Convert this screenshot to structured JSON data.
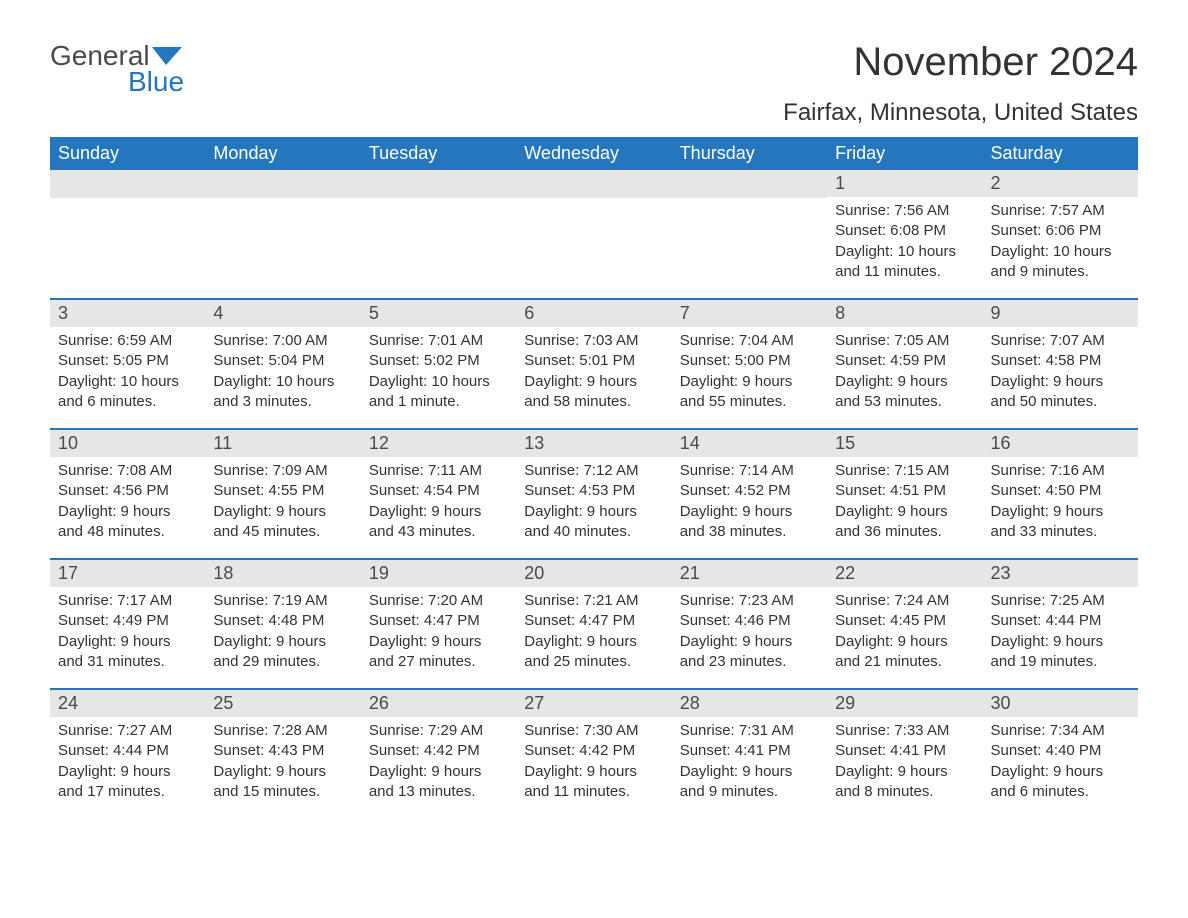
{
  "logo": {
    "word1": "General",
    "word2": "Blue",
    "flag_color": "#2476bd",
    "text_gray": "#4a4a4a",
    "text_blue": "#2476bd"
  },
  "title": "November 2024",
  "location": "Fairfax, Minnesota, United States",
  "colors": {
    "header_bg": "#2476bd",
    "header_text": "#ffffff",
    "daynum_bg": "#e6e6e6",
    "daynum_text": "#4a4a4a",
    "body_text": "#333333",
    "row_border": "#2476bd",
    "page_bg": "#ffffff"
  },
  "weekdays": [
    "Sunday",
    "Monday",
    "Tuesday",
    "Wednesday",
    "Thursday",
    "Friday",
    "Saturday"
  ],
  "weeks": [
    [
      {
        "day": "",
        "sunrise": "",
        "sunset": "",
        "daylight": ""
      },
      {
        "day": "",
        "sunrise": "",
        "sunset": "",
        "daylight": ""
      },
      {
        "day": "",
        "sunrise": "",
        "sunset": "",
        "daylight": ""
      },
      {
        "day": "",
        "sunrise": "",
        "sunset": "",
        "daylight": ""
      },
      {
        "day": "",
        "sunrise": "",
        "sunset": "",
        "daylight": ""
      },
      {
        "day": "1",
        "sunrise": "Sunrise: 7:56 AM",
        "sunset": "Sunset: 6:08 PM",
        "daylight": "Daylight: 10 hours and 11 minutes."
      },
      {
        "day": "2",
        "sunrise": "Sunrise: 7:57 AM",
        "sunset": "Sunset: 6:06 PM",
        "daylight": "Daylight: 10 hours and 9 minutes."
      }
    ],
    [
      {
        "day": "3",
        "sunrise": "Sunrise: 6:59 AM",
        "sunset": "Sunset: 5:05 PM",
        "daylight": "Daylight: 10 hours and 6 minutes."
      },
      {
        "day": "4",
        "sunrise": "Sunrise: 7:00 AM",
        "sunset": "Sunset: 5:04 PM",
        "daylight": "Daylight: 10 hours and 3 minutes."
      },
      {
        "day": "5",
        "sunrise": "Sunrise: 7:01 AM",
        "sunset": "Sunset: 5:02 PM",
        "daylight": "Daylight: 10 hours and 1 minute."
      },
      {
        "day": "6",
        "sunrise": "Sunrise: 7:03 AM",
        "sunset": "Sunset: 5:01 PM",
        "daylight": "Daylight: 9 hours and 58 minutes."
      },
      {
        "day": "7",
        "sunrise": "Sunrise: 7:04 AM",
        "sunset": "Sunset: 5:00 PM",
        "daylight": "Daylight: 9 hours and 55 minutes."
      },
      {
        "day": "8",
        "sunrise": "Sunrise: 7:05 AM",
        "sunset": "Sunset: 4:59 PM",
        "daylight": "Daylight: 9 hours and 53 minutes."
      },
      {
        "day": "9",
        "sunrise": "Sunrise: 7:07 AM",
        "sunset": "Sunset: 4:58 PM",
        "daylight": "Daylight: 9 hours and 50 minutes."
      }
    ],
    [
      {
        "day": "10",
        "sunrise": "Sunrise: 7:08 AM",
        "sunset": "Sunset: 4:56 PM",
        "daylight": "Daylight: 9 hours and 48 minutes."
      },
      {
        "day": "11",
        "sunrise": "Sunrise: 7:09 AM",
        "sunset": "Sunset: 4:55 PM",
        "daylight": "Daylight: 9 hours and 45 minutes."
      },
      {
        "day": "12",
        "sunrise": "Sunrise: 7:11 AM",
        "sunset": "Sunset: 4:54 PM",
        "daylight": "Daylight: 9 hours and 43 minutes."
      },
      {
        "day": "13",
        "sunrise": "Sunrise: 7:12 AM",
        "sunset": "Sunset: 4:53 PM",
        "daylight": "Daylight: 9 hours and 40 minutes."
      },
      {
        "day": "14",
        "sunrise": "Sunrise: 7:14 AM",
        "sunset": "Sunset: 4:52 PM",
        "daylight": "Daylight: 9 hours and 38 minutes."
      },
      {
        "day": "15",
        "sunrise": "Sunrise: 7:15 AM",
        "sunset": "Sunset: 4:51 PM",
        "daylight": "Daylight: 9 hours and 36 minutes."
      },
      {
        "day": "16",
        "sunrise": "Sunrise: 7:16 AM",
        "sunset": "Sunset: 4:50 PM",
        "daylight": "Daylight: 9 hours and 33 minutes."
      }
    ],
    [
      {
        "day": "17",
        "sunrise": "Sunrise: 7:17 AM",
        "sunset": "Sunset: 4:49 PM",
        "daylight": "Daylight: 9 hours and 31 minutes."
      },
      {
        "day": "18",
        "sunrise": "Sunrise: 7:19 AM",
        "sunset": "Sunset: 4:48 PM",
        "daylight": "Daylight: 9 hours and 29 minutes."
      },
      {
        "day": "19",
        "sunrise": "Sunrise: 7:20 AM",
        "sunset": "Sunset: 4:47 PM",
        "daylight": "Daylight: 9 hours and 27 minutes."
      },
      {
        "day": "20",
        "sunrise": "Sunrise: 7:21 AM",
        "sunset": "Sunset: 4:47 PM",
        "daylight": "Daylight: 9 hours and 25 minutes."
      },
      {
        "day": "21",
        "sunrise": "Sunrise: 7:23 AM",
        "sunset": "Sunset: 4:46 PM",
        "daylight": "Daylight: 9 hours and 23 minutes."
      },
      {
        "day": "22",
        "sunrise": "Sunrise: 7:24 AM",
        "sunset": "Sunset: 4:45 PM",
        "daylight": "Daylight: 9 hours and 21 minutes."
      },
      {
        "day": "23",
        "sunrise": "Sunrise: 7:25 AM",
        "sunset": "Sunset: 4:44 PM",
        "daylight": "Daylight: 9 hours and 19 minutes."
      }
    ],
    [
      {
        "day": "24",
        "sunrise": "Sunrise: 7:27 AM",
        "sunset": "Sunset: 4:44 PM",
        "daylight": "Daylight: 9 hours and 17 minutes."
      },
      {
        "day": "25",
        "sunrise": "Sunrise: 7:28 AM",
        "sunset": "Sunset: 4:43 PM",
        "daylight": "Daylight: 9 hours and 15 minutes."
      },
      {
        "day": "26",
        "sunrise": "Sunrise: 7:29 AM",
        "sunset": "Sunset: 4:42 PM",
        "daylight": "Daylight: 9 hours and 13 minutes."
      },
      {
        "day": "27",
        "sunrise": "Sunrise: 7:30 AM",
        "sunset": "Sunset: 4:42 PM",
        "daylight": "Daylight: 9 hours and 11 minutes."
      },
      {
        "day": "28",
        "sunrise": "Sunrise: 7:31 AM",
        "sunset": "Sunset: 4:41 PM",
        "daylight": "Daylight: 9 hours and 9 minutes."
      },
      {
        "day": "29",
        "sunrise": "Sunrise: 7:33 AM",
        "sunset": "Sunset: 4:41 PM",
        "daylight": "Daylight: 9 hours and 8 minutes."
      },
      {
        "day": "30",
        "sunrise": "Sunrise: 7:34 AM",
        "sunset": "Sunset: 4:40 PM",
        "daylight": "Daylight: 9 hours and 6 minutes."
      }
    ]
  ]
}
